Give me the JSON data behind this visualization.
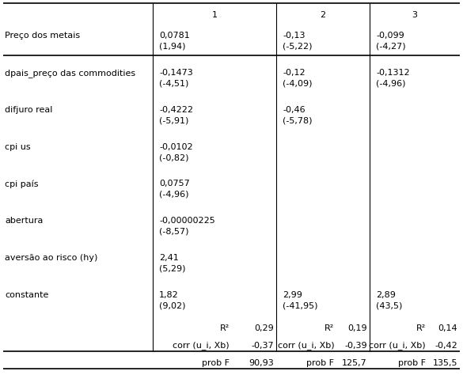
{
  "rows": [
    {
      "label": "Preço dos metais",
      "col1_val": "0,0781",
      "col1_stat": "(1,94)",
      "col2_val": "-0,13",
      "col2_stat": "(-5,22)",
      "col3_val": "-0,099",
      "col3_stat": "(-4,27)"
    },
    {
      "label": "dpais_preço das commodities",
      "col1_val": "-0,1473",
      "col1_stat": "(-4,51)",
      "col2_val": "-0,12",
      "col2_stat": "(-4,09)",
      "col3_val": "-0,1312",
      "col3_stat": "(-4,96)"
    },
    {
      "label": "difjuro real",
      "col1_val": "-0,4222",
      "col1_stat": "(-5,91)",
      "col2_val": "-0,46",
      "col2_stat": "(-5,78)",
      "col3_val": "",
      "col3_stat": ""
    },
    {
      "label": "cpi us",
      "col1_val": "-0,0102",
      "col1_stat": "(-0,82)",
      "col2_val": "",
      "col2_stat": "",
      "col3_val": "",
      "col3_stat": ""
    },
    {
      "label": "cpi país",
      "col1_val": "0,0757",
      "col1_stat": "(-4,96)",
      "col2_val": "",
      "col2_stat": "",
      "col3_val": "",
      "col3_stat": ""
    },
    {
      "label": "abertura",
      "col1_val": "-0,00000225",
      "col1_stat": "(-8,57)",
      "col2_val": "",
      "col2_stat": "",
      "col3_val": "",
      "col3_stat": ""
    },
    {
      "label": "aversão ao risco (hy)",
      "col1_val": "2,41",
      "col1_stat": "(5,29)",
      "col2_val": "",
      "col2_stat": "",
      "col3_val": "",
      "col3_stat": ""
    },
    {
      "label": "constante",
      "col1_val": "1,82",
      "col1_stat": "(9,02)",
      "col2_val": "2,99",
      "col2_stat": "(-41,95)",
      "col3_val": "2,89",
      "col3_stat": "(43,5)"
    }
  ],
  "footer_labels": [
    "R²",
    "corr (u_i, Xb)",
    "prob F"
  ],
  "footer_col1": [
    "0,29",
    "-0,37",
    "90,93"
  ],
  "footer_col2": [
    "0,19",
    "-0,39",
    "125,7"
  ],
  "footer_col3": [
    "0,14",
    "-0,42",
    "135,5"
  ],
  "bg_color": "#ffffff",
  "text_color": "#000000",
  "font_size": 8.0
}
